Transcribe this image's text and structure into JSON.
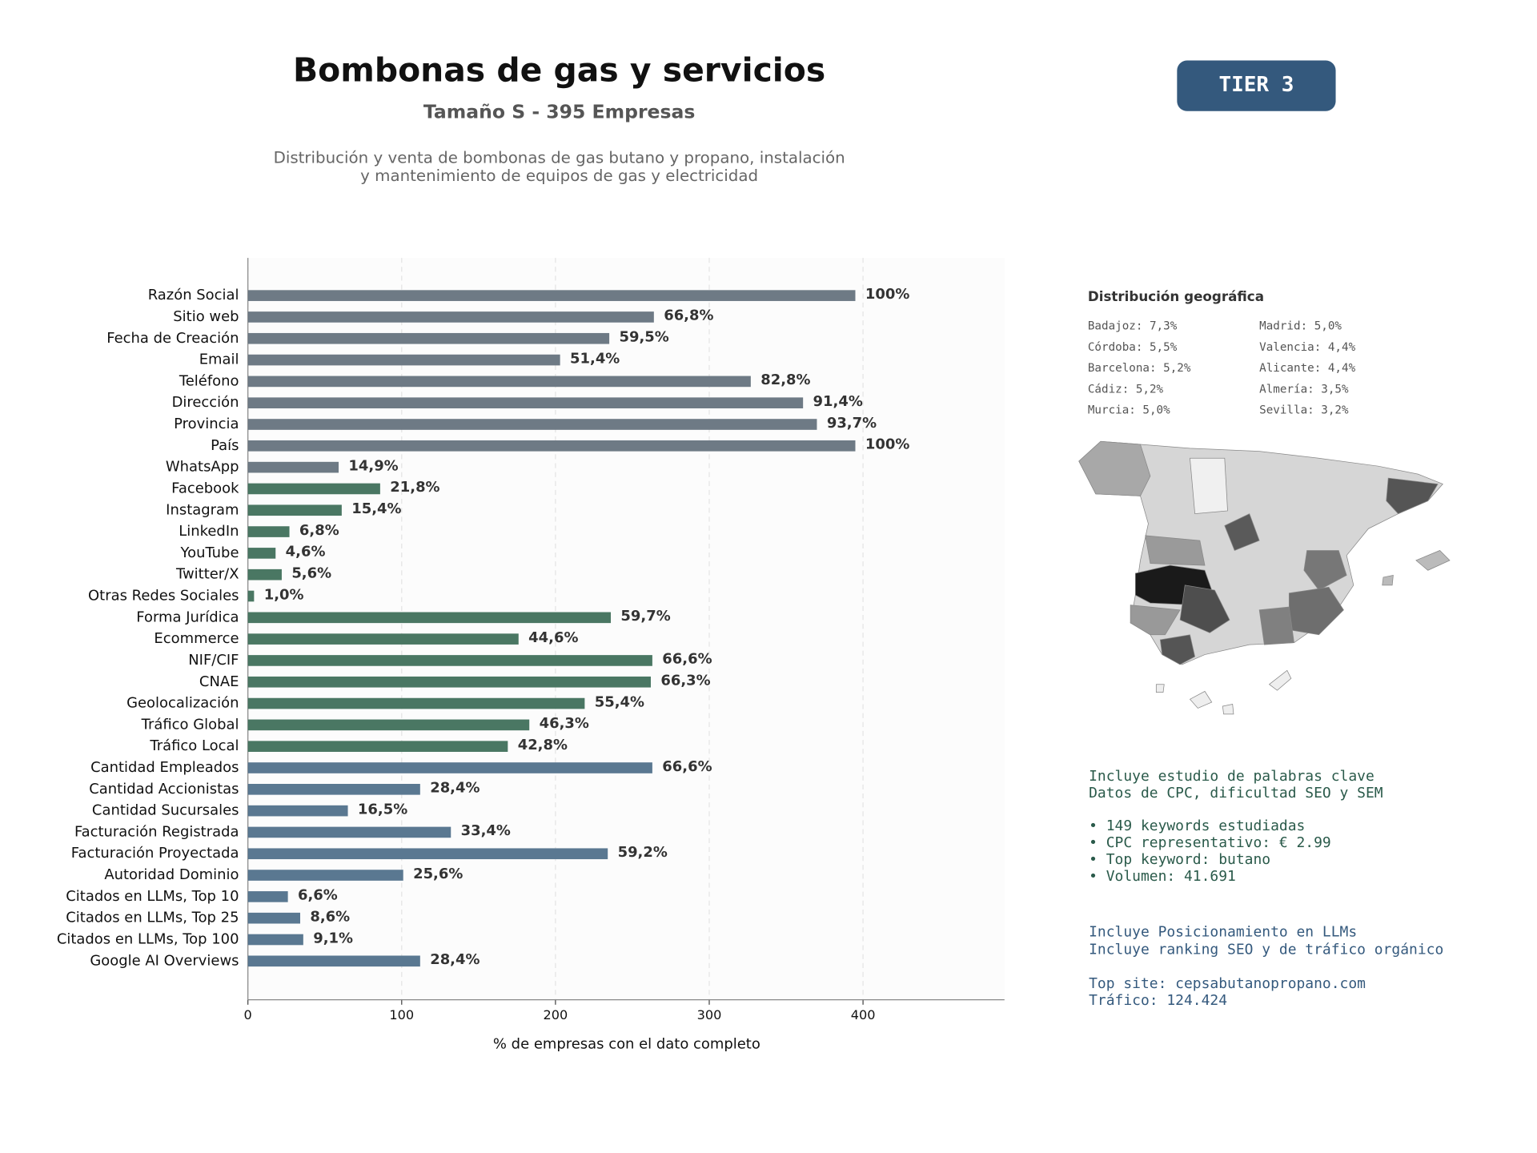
{
  "chart_data": {
    "type": "bar",
    "orientation": "horizontal",
    "title": "Bombonas de gas y servicios",
    "subtitle": "Tamaño S - 395 Empresas",
    "description": [
      "Distribución y venta de bombonas de gas butano y propano, instalación",
      "y mantenimiento de equipos de gas y electricidad"
    ],
    "badge": "TIER 3",
    "x_label": "% de empresas con el dato completo",
    "categories": [
      "Razón Social",
      "Sitio web",
      "Fecha de Creación",
      "Email",
      "Teléfono",
      "Dirección",
      "Provincia",
      "País",
      "WhatsApp",
      "Facebook",
      "Instagram",
      "LinkedIn",
      "YouTube",
      "Twitter/X",
      "Otras Redes Sociales",
      "Forma Jurídica",
      "Ecommerce",
      "NIF/CIF",
      "CNAE",
      "Geolocalización",
      "Tráfico Global",
      "Tráfico Local",
      "Cantidad Empleados",
      "Cantidad Accionistas",
      "Cantidad Sucursales",
      "Facturación Registrada",
      "Facturación Proyectada",
      "Autoridad Dominio",
      "Citados en LLMs, Top 10",
      "Citados en LLMs, Top 25",
      "Citados en LLMs, Top 100",
      "Google AI Overviews"
    ],
    "values": [
      395,
      264,
      235,
      203,
      327,
      361,
      370,
      395,
      59,
      86,
      61,
      27,
      18,
      22,
      4,
      236,
      176,
      263,
      262,
      219,
      183,
      169,
      263,
      112,
      65,
      132,
      234,
      101,
      26,
      34,
      36,
      112
    ],
    "value_labels": [
      "100%",
      "66,8%",
      "59,5%",
      "51,4%",
      "82,8%",
      "91,4%",
      "93,7%",
      "100%",
      "14,9%",
      "21,8%",
      "15,4%",
      "6,8%",
      "4,6%",
      "5,6%",
      "1,0%",
      "59,7%",
      "44,6%",
      "66,6%",
      "66,3%",
      "55,4%",
      "46,3%",
      "42,8%",
      "66,6%",
      "28,4%",
      "16,5%",
      "33,4%",
      "59,2%",
      "25,6%",
      "6,6%",
      "8,6%",
      "9,1%",
      "28,4%"
    ],
    "colors": [
      "#6e7a85",
      "#6e7a85",
      "#6e7a85",
      "#6e7a85",
      "#6e7a85",
      "#6e7a85",
      "#6e7a85",
      "#6e7a85",
      "#6e7a85",
      "#4a7763",
      "#4a7763",
      "#4a7763",
      "#4a7763",
      "#4a7763",
      "#4a7763",
      "#4a7763",
      "#4a7763",
      "#4a7763",
      "#4a7763",
      "#4a7763",
      "#4a7763",
      "#4a7763",
      "#5a7891",
      "#5a7891",
      "#5a7891",
      "#5a7891",
      "#5a7891",
      "#5a7891",
      "#5a7891",
      "#5a7891",
      "#5a7891",
      "#5a7891"
    ],
    "xlim": [
      0,
      492
    ],
    "xticks": [
      0,
      100,
      200,
      300,
      400
    ],
    "grid": true
  },
  "geo": {
    "title": "Distribución geográfica",
    "items": [
      "Badajoz: 7,3%",
      "Madrid: 5,0%",
      "Córdoba: 5,5%",
      "Valencia: 4,4%",
      "Barcelona: 5,2%",
      "Alicante: 4,4%",
      "Cádiz: 5,2%",
      "Almería: 3,5%",
      "Murcia: 5,0%",
      "Sevilla: 3,2%"
    ]
  },
  "keywords": [
    "Incluye estudio de palabras clave",
    "Datos de CPC, dificultad SEO y SEM",
    "• 149 keywords estudiadas",
    "• CPC representativo: € 2.99",
    "• Top keyword: butano",
    "• Volumen: 41.691"
  ],
  "llm": [
    "Incluye Posicionamiento en LLMs",
    "Incluye ranking SEO y de tráfico orgánico",
    "Top site: cepsabutanopropano.com",
    "Tráfico: 124.424"
  ]
}
